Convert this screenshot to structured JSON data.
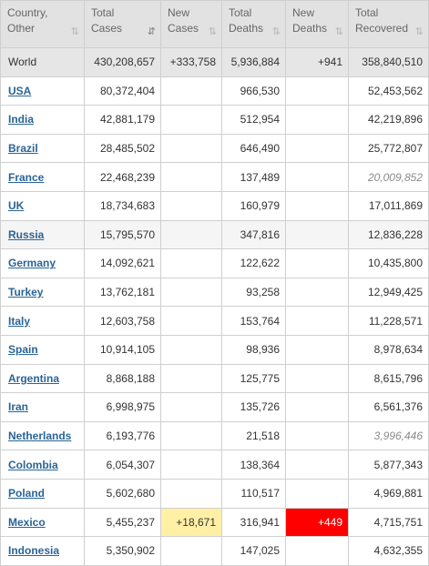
{
  "columns": [
    {
      "line1": "Country,",
      "line2": "Other",
      "sort": "⇅",
      "active": false
    },
    {
      "line1": "Total",
      "line2": "Cases",
      "sort": "⇵",
      "active": true
    },
    {
      "line1": "New",
      "line2": "Cases",
      "sort": "⇅",
      "active": false
    },
    {
      "line1": "Total",
      "line2": "Deaths",
      "sort": "⇅",
      "active": false
    },
    {
      "line1": "New",
      "line2": "Deaths",
      "sort": "⇅",
      "active": false
    },
    {
      "line1": "Total",
      "line2": "Recovered",
      "sort": "⇅",
      "active": false
    }
  ],
  "colors": {
    "new_cases_highlight": "#fff0a5",
    "new_deaths_highlight": "#ff0000",
    "link": "#2a6496",
    "header_bg": "#e2e2e2"
  },
  "rows": [
    {
      "country": "World",
      "total_cases": "430,208,657",
      "new_cases": "+333,758",
      "total_deaths": "5,936,884",
      "new_deaths": "+941",
      "total_recovered": "358,840,510",
      "world": true
    },
    {
      "country": "USA",
      "total_cases": "80,372,404",
      "new_cases": "",
      "total_deaths": "966,530",
      "new_deaths": "",
      "total_recovered": "52,453,562"
    },
    {
      "country": "India",
      "total_cases": "42,881,179",
      "new_cases": "",
      "total_deaths": "512,954",
      "new_deaths": "",
      "total_recovered": "42,219,896"
    },
    {
      "country": "Brazil",
      "total_cases": "28,485,502",
      "new_cases": "",
      "total_deaths": "646,490",
      "new_deaths": "",
      "total_recovered": "25,772,807"
    },
    {
      "country": "France",
      "total_cases": "22,468,239",
      "new_cases": "",
      "total_deaths": "137,489",
      "new_deaths": "",
      "total_recovered": "20,009,852",
      "recovered_italic": true
    },
    {
      "country": "UK",
      "total_cases": "18,734,683",
      "new_cases": "",
      "total_deaths": "160,979",
      "new_deaths": "",
      "total_recovered": "17,011,869"
    },
    {
      "country": "Russia",
      "total_cases": "15,795,570",
      "new_cases": "",
      "total_deaths": "347,816",
      "new_deaths": "",
      "total_recovered": "12,836,228",
      "shaded": true
    },
    {
      "country": "Germany",
      "total_cases": "14,092,621",
      "new_cases": "",
      "total_deaths": "122,622",
      "new_deaths": "",
      "total_recovered": "10,435,800"
    },
    {
      "country": "Turkey",
      "total_cases": "13,762,181",
      "new_cases": "",
      "total_deaths": "93,258",
      "new_deaths": "",
      "total_recovered": "12,949,425"
    },
    {
      "country": "Italy",
      "total_cases": "12,603,758",
      "new_cases": "",
      "total_deaths": "153,764",
      "new_deaths": "",
      "total_recovered": "11,228,571"
    },
    {
      "country": "Spain",
      "total_cases": "10,914,105",
      "new_cases": "",
      "total_deaths": "98,936",
      "new_deaths": "",
      "total_recovered": "8,978,634"
    },
    {
      "country": "Argentina",
      "total_cases": "8,868,188",
      "new_cases": "",
      "total_deaths": "125,775",
      "new_deaths": "",
      "total_recovered": "8,615,796"
    },
    {
      "country": "Iran",
      "total_cases": "6,998,975",
      "new_cases": "",
      "total_deaths": "135,726",
      "new_deaths": "",
      "total_recovered": "6,561,376"
    },
    {
      "country": "Netherlands",
      "total_cases": "6,193,776",
      "new_cases": "",
      "total_deaths": "21,518",
      "new_deaths": "",
      "total_recovered": "3,996,446",
      "recovered_italic": true
    },
    {
      "country": "Colombia",
      "total_cases": "6,054,307",
      "new_cases": "",
      "total_deaths": "138,364",
      "new_deaths": "",
      "total_recovered": "5,877,343"
    },
    {
      "country": "Poland",
      "total_cases": "5,602,680",
      "new_cases": "",
      "total_deaths": "110,517",
      "new_deaths": "",
      "total_recovered": "4,969,881"
    },
    {
      "country": "Mexico",
      "total_cases": "5,455,237",
      "new_cases": "+18,671",
      "total_deaths": "316,941",
      "new_deaths": "+449",
      "total_recovered": "4,715,751",
      "highlight_new": true
    },
    {
      "country": "Indonesia",
      "total_cases": "5,350,902",
      "new_cases": "",
      "total_deaths": "147,025",
      "new_deaths": "",
      "total_recovered": "4,632,355"
    }
  ]
}
